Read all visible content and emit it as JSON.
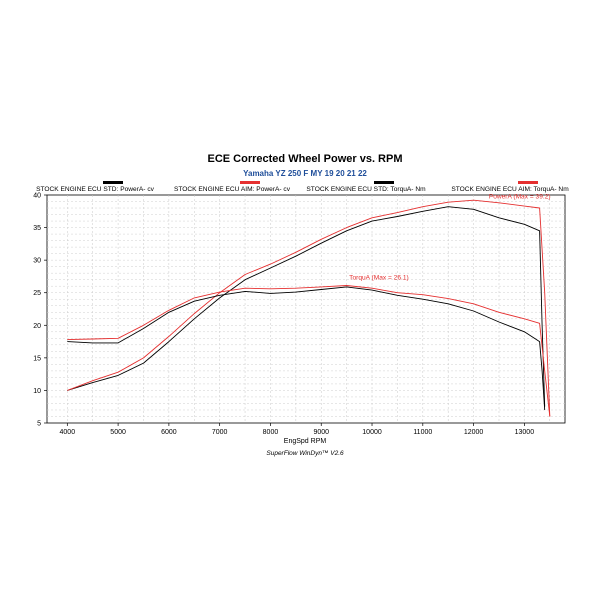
{
  "chart_data": {
    "type": "line",
    "title": "ECE Corrected Wheel Power vs. RPM",
    "subtitle": "Yamaha YZ 250 F MY 19 20 21 22",
    "xlabel": "EngSpd  RPM",
    "credit": "SuperFlow WinDyn™ V2.6",
    "xlim": [
      3600,
      13800
    ],
    "ylim": [
      5,
      40
    ],
    "xticks": [
      4000,
      5000,
      6000,
      7000,
      8000,
      9000,
      10000,
      11000,
      12000,
      13000
    ],
    "yticks": [
      5,
      10,
      15,
      20,
      25,
      30,
      35,
      40
    ],
    "grid": true,
    "legend_position": "top",
    "series": [
      {
        "name": "STOCK ENGINE ECU STD: PowerA- cv",
        "color": "#000000",
        "x": [
          4000,
          4500,
          5000,
          5500,
          6000,
          6500,
          7000,
          7500,
          8000,
          8500,
          9000,
          9500,
          10000,
          10500,
          11000,
          11500,
          12000,
          12500,
          13000,
          13300,
          13350,
          13400
        ],
        "y": [
          10.0,
          11.2,
          12.3,
          14.2,
          17.5,
          21.0,
          24.2,
          27.0,
          28.8,
          30.6,
          32.6,
          34.5,
          36.0,
          36.7,
          37.5,
          38.2,
          37.8,
          36.5,
          35.5,
          34.5,
          20.0,
          7.5
        ]
      },
      {
        "name": "STOCK ENGINE ECU AIM: PowerA- cv",
        "color": "#e53030",
        "x": [
          4000,
          4500,
          5000,
          5500,
          6000,
          6500,
          7000,
          7500,
          8000,
          8500,
          9000,
          9500,
          10000,
          10500,
          11000,
          11500,
          12000,
          12500,
          13000,
          13300,
          13400,
          13500
        ],
        "y": [
          10.0,
          11.5,
          12.8,
          15.0,
          18.3,
          21.8,
          25.0,
          27.8,
          29.4,
          31.2,
          33.2,
          35.0,
          36.5,
          37.3,
          38.2,
          38.9,
          39.2,
          38.8,
          38.3,
          38.0,
          25.0,
          6.0
        ]
      },
      {
        "name": "STOCK ENGINE ECU STD: TorquA- Nm",
        "color": "#000000",
        "x": [
          4000,
          4500,
          5000,
          5500,
          6000,
          6500,
          7000,
          7500,
          8000,
          8500,
          9000,
          9500,
          10000,
          10500,
          11000,
          11500,
          12000,
          12500,
          13000,
          13300,
          13350,
          13400
        ],
        "y": [
          17.5,
          17.3,
          17.3,
          19.5,
          22.0,
          23.7,
          24.6,
          25.2,
          24.9,
          25.1,
          25.5,
          25.9,
          25.4,
          24.6,
          24.0,
          23.3,
          22.2,
          20.5,
          19.0,
          17.5,
          13.0,
          7.0
        ]
      },
      {
        "name": "STOCK ENGINE ECU AIM: TorquA- Nm",
        "color": "#e53030",
        "x": [
          4000,
          4500,
          5000,
          5500,
          6000,
          6500,
          7000,
          7500,
          8000,
          8500,
          9000,
          9500,
          10000,
          10500,
          11000,
          11500,
          12000,
          12500,
          13000,
          13300,
          13400,
          13500
        ],
        "y": [
          17.8,
          17.9,
          18.0,
          20.0,
          22.3,
          24.2,
          25.1,
          25.7,
          25.6,
          25.7,
          25.9,
          26.1,
          25.7,
          25.0,
          24.7,
          24.1,
          23.3,
          22.0,
          21.0,
          20.3,
          13.0,
          6.0
        ]
      }
    ],
    "annotations": [
      {
        "text": "PowerA (Max = 39.2)",
        "x": 12300,
        "y": 39.5,
        "color": "#e53030"
      },
      {
        "text": "TorquA (Max = 26.1)",
        "x": 9550,
        "y": 27.0,
        "color": "#e53030"
      }
    ]
  }
}
